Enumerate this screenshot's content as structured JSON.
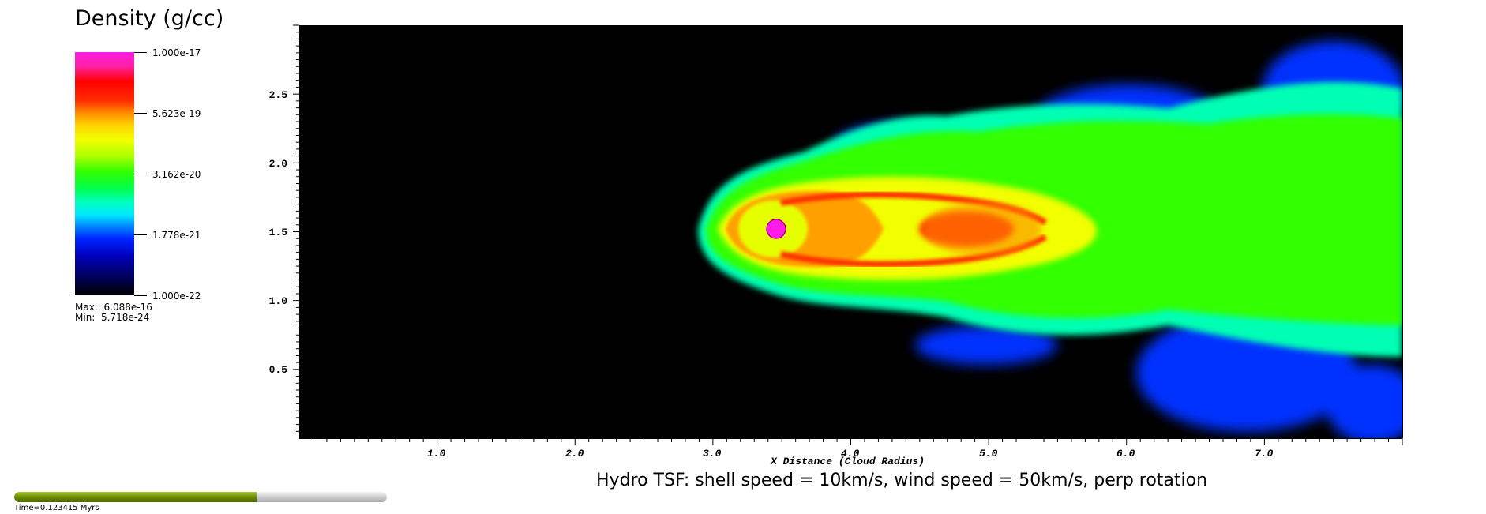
{
  "chart_data": {
    "type": "heatmap",
    "title": "Hydro TSF: shell speed = 10km/s, wind speed = 50km/s, perp rotation",
    "xlabel": "X Distance (Cloud Radius)",
    "ylabel": "",
    "xlim": [
      0.0,
      8.0
    ],
    "ylim": [
      0.0,
      3.0
    ],
    "x_ticks": [
      "1.0",
      "2.0",
      "3.0",
      "4.0",
      "5.0",
      "6.0",
      "7.0"
    ],
    "y_ticks": [
      "0.5",
      "1.0",
      "1.5",
      "2.0",
      "2.5"
    ],
    "colorbar": {
      "title": "Density (g/cc)",
      "scale": "log",
      "range": [
        1e-22,
        1e-17
      ],
      "tick_labels": [
        "1.000e-17",
        "5.623e-19",
        "3.162e-20",
        "1.778e-21",
        "1.000e-22"
      ],
      "max_label": "Max:",
      "max_value": "6.088e-16",
      "min_label": "Min:",
      "min_value": "5.718e-24"
    }
  },
  "time": {
    "label": "Time=0.123415 Myrs",
    "progress": 0.65
  },
  "colors": {
    "background": "#000000",
    "plume": "#33ff00",
    "core": "#ff0000",
    "dense": "#ff1ce8"
  }
}
